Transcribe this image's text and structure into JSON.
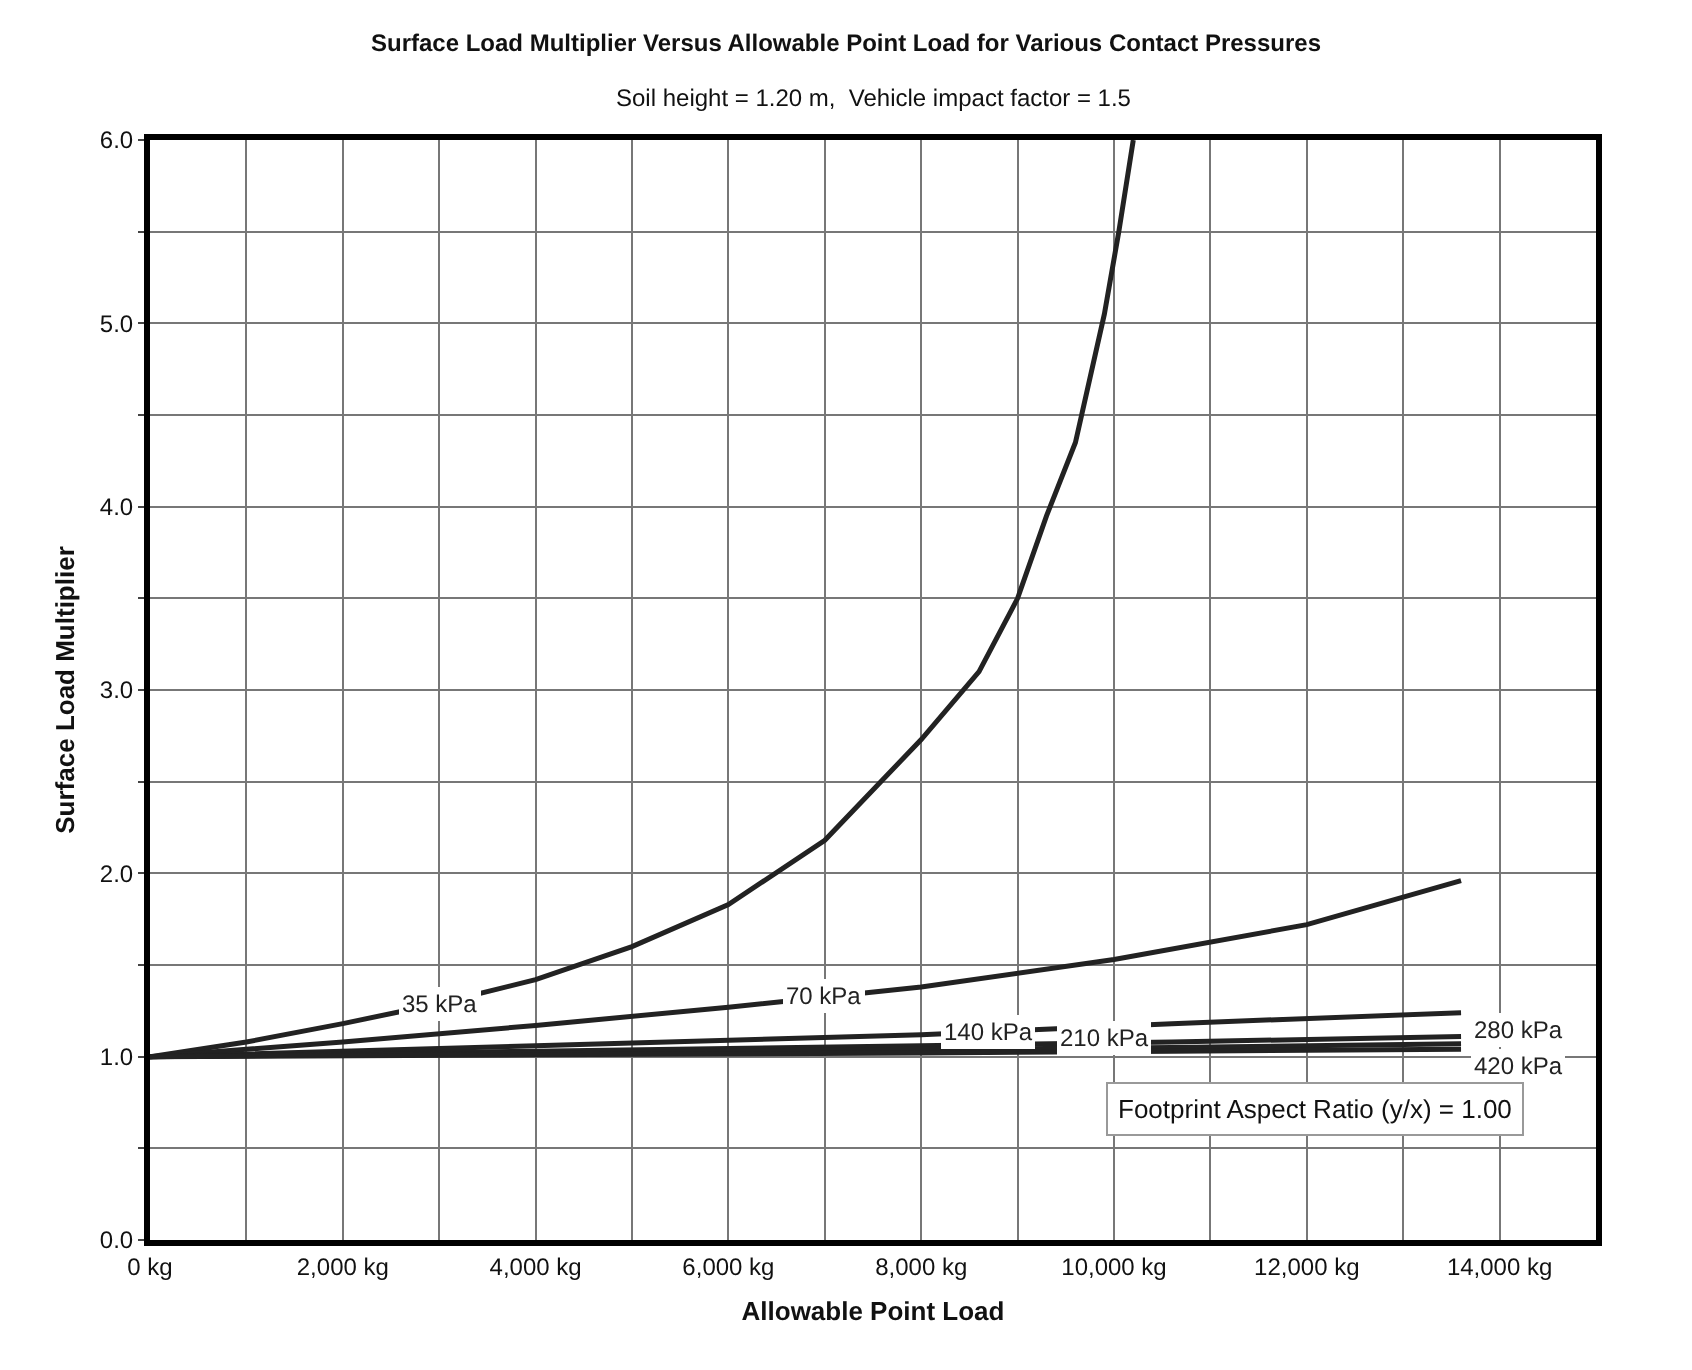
{
  "chart_data": {
    "type": "line",
    "title": "Surface Load Multiplier Versus Allowable Point Load for Various Contact Pressures",
    "subtitle": "Soil height = 1.20 m,  Vehicle impact factor = 1.5",
    "xlabel": "Allowable Point Load",
    "ylabel": "Surface Load Multiplier",
    "series": [
      {
        "color": "#222222",
        "x": [
          0,
          1000,
          2000,
          3000,
          4000,
          5000,
          6000,
          7000,
          8000,
          8600,
          9000,
          9300,
          9600,
          9900,
          10050,
          10200
        ],
        "values": [
          1.0,
          1.08,
          1.18,
          1.29,
          1.42,
          1.6,
          1.83,
          2.18,
          2.73,
          3.1,
          3.5,
          3.95,
          4.35,
          5.05,
          5.5,
          6.0
        ]
      },
      {
        "color": "#222222",
        "x": [
          0,
          2000,
          4000,
          6000,
          8000,
          10000,
          12000,
          13600
        ],
        "values": [
          1.0,
          1.08,
          1.17,
          1.27,
          1.38,
          1.53,
          1.72,
          1.96
        ]
      },
      {
        "color": "#222222",
        "x": [
          0,
          4000,
          8000,
          10600,
          13600
        ],
        "values": [
          1.0,
          1.06,
          1.12,
          1.18,
          1.24
        ]
      },
      {
        "color": "#222222",
        "x": [
          0,
          4000,
          8000,
          10600,
          13600
        ],
        "values": [
          1.0,
          1.03,
          1.06,
          1.08,
          1.11
        ]
      },
      {
        "color": "#222222",
        "x": [
          0,
          4000,
          8000,
          10600,
          13600
        ],
        "values": [
          1.0,
          1.02,
          1.04,
          1.05,
          1.07
        ]
      },
      {
        "color": "#222222",
        "x": [
          0,
          4000,
          8000,
          10600,
          13600
        ],
        "values": [
          1.0,
          1.01,
          1.02,
          1.03,
          1.04
        ]
      }
    ],
    "annotations": [
      {
        "text": "35 kPa",
        "x": 3000,
        "y": 1.29
      },
      {
        "text": "70 kPa",
        "x": 7000,
        "y": 1.33
      },
      {
        "text": "140 kPa",
        "x": 8700,
        "y": 1.14
      },
      {
        "text": "210 kPa",
        "x": 9900,
        "y": 1.1
      },
      {
        "text": "280 kPa",
        "x": 13600,
        "y": 1.07
      },
      {
        "text": "420 kPa",
        "x": 13600,
        "y": 1.04
      },
      "Footprint Aspect Ratio (y/x) = 1.00"
    ],
    "xlim": [
      0,
      15000
    ],
    "xticks": [
      {
        "value": 0,
        "label": "0 kg"
      },
      {
        "value": 1000,
        "label": null
      },
      {
        "value": 2000,
        "label": "2,000 kg"
      },
      {
        "value": 3000,
        "label": null
      },
      {
        "value": 4000,
        "label": "4,000 kg"
      },
      {
        "value": 5000,
        "label": null
      },
      {
        "value": 6000,
        "label": "6,000 kg"
      },
      {
        "value": 7000,
        "label": null
      },
      {
        "value": 8000,
        "label": "8,000 kg"
      },
      {
        "value": 9000,
        "label": null
      },
      {
        "value": 10000,
        "label": "10,000 kg"
      },
      {
        "value": 11000,
        "label": null
      },
      {
        "value": 12000,
        "label": "12,000 kg"
      },
      {
        "value": 13000,
        "label": null
      },
      {
        "value": 14000,
        "label": "14,000 kg"
      },
      {
        "value": 15000,
        "label": null
      }
    ],
    "ylim": [
      0,
      6
    ],
    "yticks": [
      {
        "value": 0,
        "label": "0.0"
      },
      {
        "value": 0.5,
        "label": null
      },
      {
        "value": 1,
        "label": "1.0"
      },
      {
        "value": 1.5,
        "label": null
      },
      {
        "value": 2,
        "label": "2.0"
      },
      {
        "value": 2.5,
        "label": null
      },
      {
        "value": 3,
        "label": "3.0"
      },
      {
        "value": 3.5,
        "label": null
      },
      {
        "value": 4,
        "label": "4.0"
      },
      {
        "value": 4.5,
        "label": null
      },
      {
        "value": 5,
        "label": "5.0"
      },
      {
        "value": 5.5,
        "label": null
      },
      {
        "value": 6,
        "label": "6.0"
      }
    ],
    "grid": true,
    "marker": "none",
    "line_style": "solid"
  }
}
